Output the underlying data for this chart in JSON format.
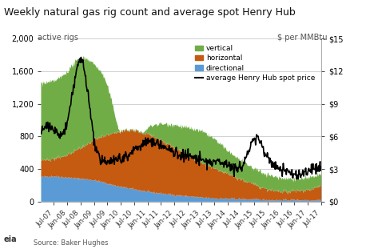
{
  "title": "Weekly natural gas rig count and average spot Henry Hub",
  "ylabel_left": "active rigs",
  "ylabel_right": "$ per MMBtu",
  "source": "Source: Baker Hughes",
  "ylim_left": [
    0,
    2000
  ],
  "ylim_right": [
    0,
    15
  ],
  "yticks_left": [
    0,
    400,
    800,
    1200,
    1600,
    2000
  ],
  "yticks_right": [
    0,
    3,
    6,
    9,
    12,
    15
  ],
  "ytick_labels_left": [
    "0",
    "400",
    "800",
    "1,200",
    "1,600",
    "2,000"
  ],
  "ytick_labels_right": [
    "$0",
    "$3",
    "$6",
    "$9",
    "$12",
    "$15"
  ],
  "colors": {
    "vertical": "#70ad47",
    "horizontal": "#c55a11",
    "directional": "#5b9bd5",
    "henry_hub": "#000000"
  },
  "bg_color": "#ffffff",
  "grid_color": "#c0c0c0"
}
